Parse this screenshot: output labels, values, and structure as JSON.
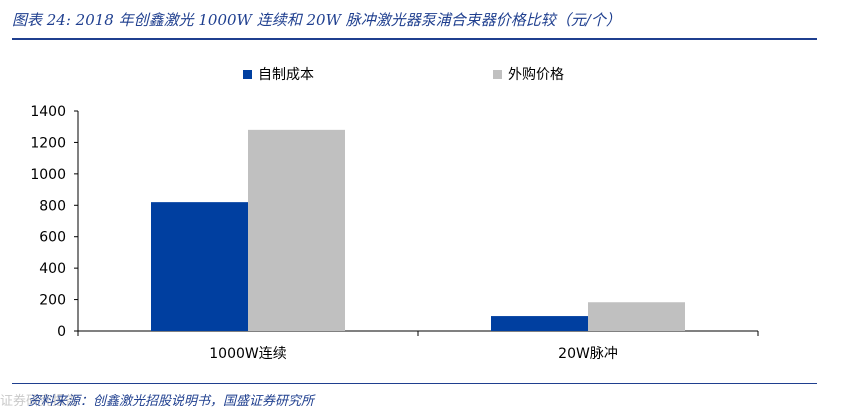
{
  "header": {
    "title": "图表 24:  2018 年创鑫激光 1000W 连续和 20W 脉冲激光器泵浦合束器价格比较（元/个）"
  },
  "footer": {
    "source": "资料来源：创鑫激光招股说明书，国盛证券研究所",
    "watermark": "证券研究报告"
  },
  "chart_data": {
    "type": "bar",
    "title": "",
    "xlabel": "",
    "ylabel": "",
    "categories": [
      "1000W连续",
      "20W脉冲"
    ],
    "series": [
      {
        "name": "自制成本",
        "values": [
          820,
          95
        ],
        "color": "#003fa0"
      },
      {
        "name": "外购价格",
        "values": [
          1280,
          183
        ],
        "color": "#c0c0c0"
      }
    ],
    "ylim": [
      0,
      1400
    ],
    "yticks": [
      "0",
      "200",
      "400",
      "600",
      "800",
      "1000",
      "1200",
      "1400"
    ],
    "grid": false,
    "legend": "top-center"
  }
}
